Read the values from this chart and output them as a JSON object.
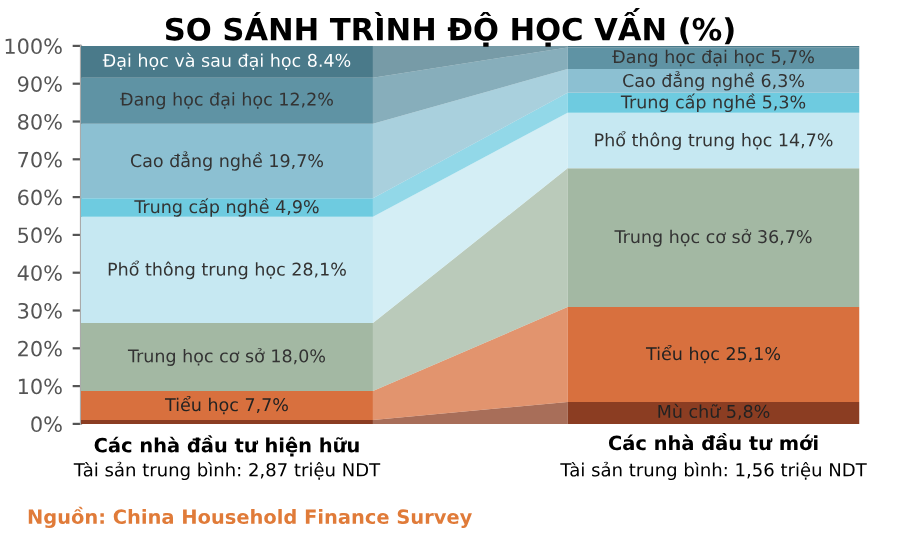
{
  "chart_data": {
    "type": "bar",
    "stacked": true,
    "title": "SO SÁNH TRÌNH ĐỘ HỌC VẤN (%)",
    "categories": [
      "Các nhà đầu tư hiện hữu\nTài sản trung bình: 2,87 triệu NDT",
      "Các nhà đầu tư mới\nTài sản trung bình: 1,56 triệu NDT"
    ],
    "series": [
      {
        "name": "Mù chữ",
        "color": "#8b3d22",
        "values": [
          1.0,
          5.8
        ],
        "value_labels": [
          null,
          "5,8%"
        ]
      },
      {
        "name": "Tiểu học",
        "color": "#d8703e",
        "values": [
          7.7,
          25.1
        ],
        "value_labels": [
          "7,7%",
          "25,1%"
        ]
      },
      {
        "name": "Trung học cơ sở",
        "color": "#a3b8a3",
        "values": [
          18.0,
          36.7
        ],
        "value_labels": [
          "18,0%",
          "36,7%"
        ]
      },
      {
        "name": "Phổ thông trung học",
        "color": "#c6e8f2",
        "values": [
          28.1,
          14.7
        ],
        "value_labels": [
          "28,1%",
          "14,7%"
        ]
      },
      {
        "name": "Trung cấp nghề",
        "color": "#6ecbe0",
        "values": [
          4.9,
          5.3
        ],
        "value_labels": [
          "4,9%",
          "5,3%"
        ]
      },
      {
        "name": "Cao đẳng nghề",
        "color": "#8cc0d2",
        "values": [
          19.7,
          6.3
        ],
        "value_labels": [
          "19,7%",
          "6,3%"
        ]
      },
      {
        "name": "Đang học đại học",
        "color": "#5f93a4",
        "values": [
          12.2,
          5.7
        ],
        "value_labels": [
          "12,2%",
          "5,7%"
        ]
      },
      {
        "name": "Đại học và sau đại học",
        "color": "#4a7a8a",
        "values": [
          8.4,
          0.4
        ],
        "value_labels": [
          "8.4%",
          null
        ]
      }
    ],
    "ylim": [
      0,
      100
    ],
    "yticks": [
      {
        "value": 0,
        "label": "0%"
      },
      {
        "value": 10,
        "label": "10%"
      },
      {
        "value": 20,
        "label": "20%"
      },
      {
        "value": 30,
        "label": "30%"
      },
      {
        "value": 40,
        "label": "40%"
      },
      {
        "value": 50,
        "label": "50%"
      },
      {
        "value": 60,
        "label": "60%"
      },
      {
        "value": 70,
        "label": "70%"
      },
      {
        "value": 80,
        "label": "80%"
      },
      {
        "value": 90,
        "label": "90%"
      },
      {
        "value": 100,
        "label": "100%"
      }
    ],
    "grid": false,
    "annotations": [
      "Nguồn: China Household Finance Survey"
    ]
  }
}
